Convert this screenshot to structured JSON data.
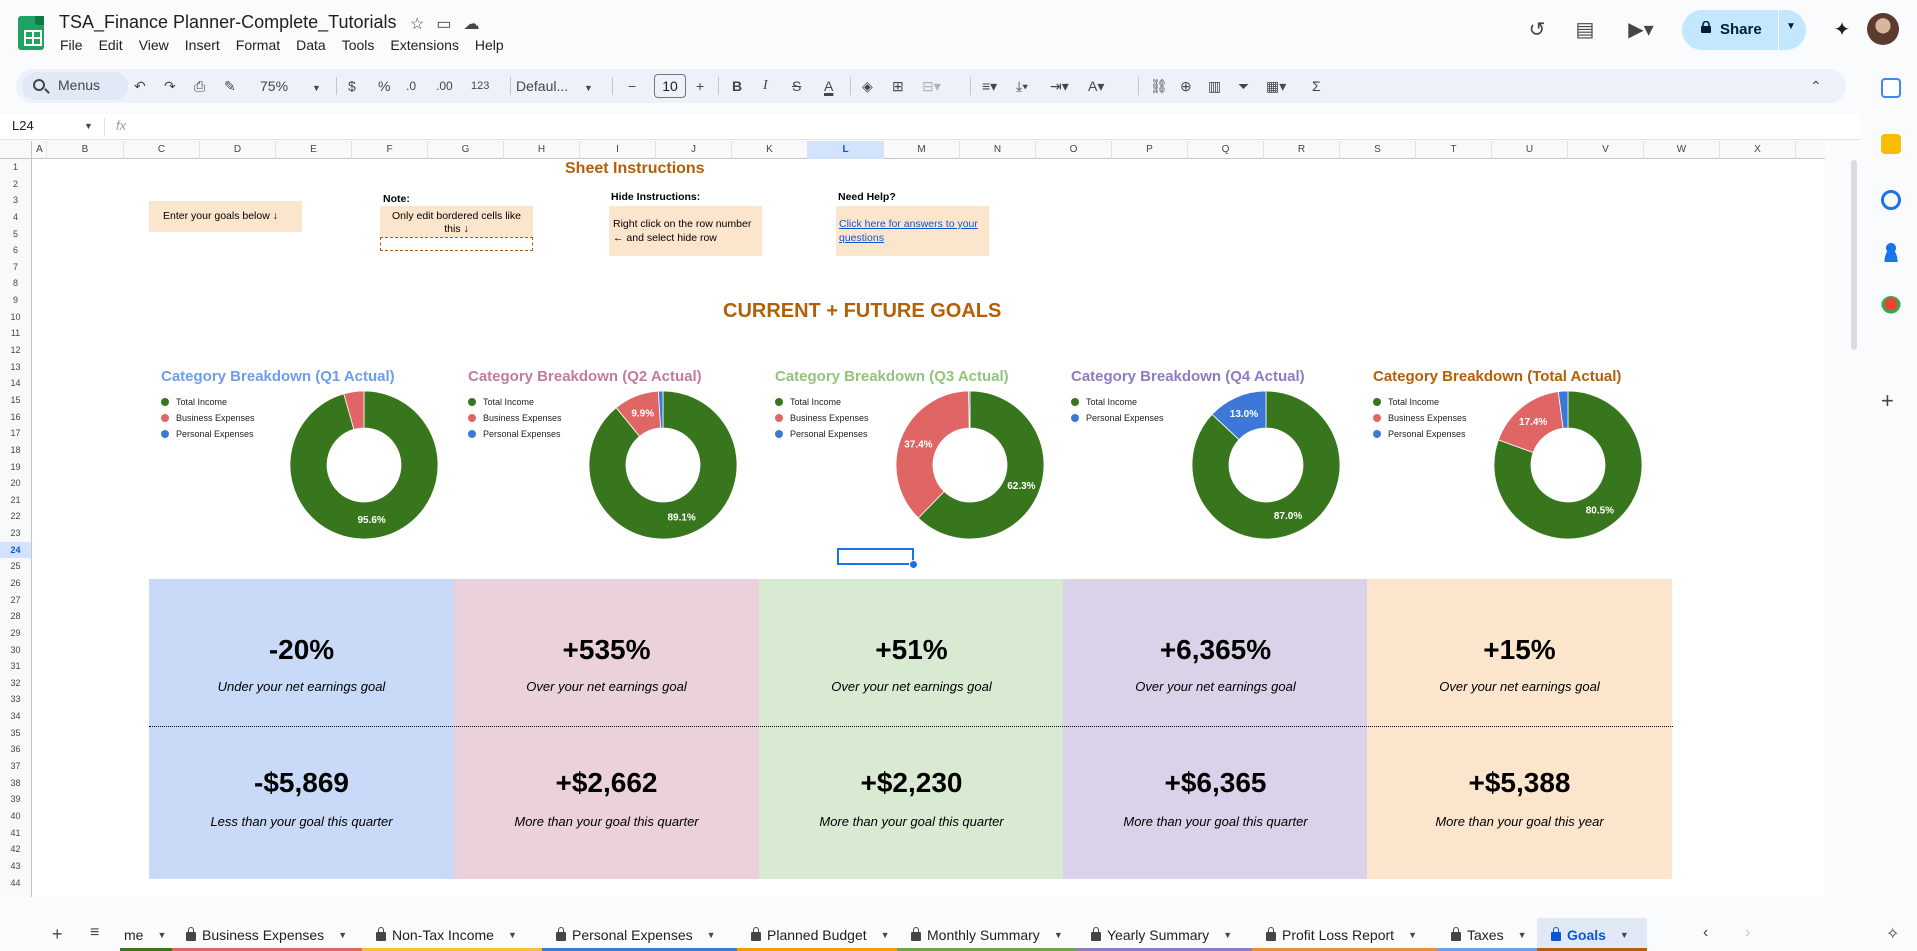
{
  "doc": {
    "title": "TSA_Finance Planner-Complete_Tutorials",
    "menus": [
      "File",
      "Edit",
      "View",
      "Insert",
      "Format",
      "Data",
      "Tools",
      "Extensions",
      "Help"
    ],
    "share_label": "Share"
  },
  "toolbar": {
    "search_label": "Menus",
    "zoom": "75%",
    "currency": "$",
    "percent": "%",
    "dec_decrease": ".0",
    "dec_increase": ".00",
    "number_format": "123",
    "font": "Defaul...",
    "font_size": "10"
  },
  "formula": {
    "cell_ref": "L24",
    "fx": "fx"
  },
  "grid": {
    "columns": [
      "A",
      "B",
      "C",
      "D",
      "E",
      "F",
      "G",
      "H",
      "I",
      "J",
      "K",
      "L",
      "M",
      "N",
      "O",
      "P",
      "Q",
      "R",
      "S",
      "T",
      "U",
      "V",
      "W",
      "X"
    ],
    "selected_column": "L",
    "rows": [
      "1",
      "2",
      "3",
      "4",
      "5",
      "6",
      "7",
      "8",
      "9",
      "10",
      "11",
      "12",
      "13",
      "14",
      "15",
      "16",
      "17",
      "18",
      "19",
      "20",
      "21",
      "22",
      "23",
      "24",
      "25",
      "26",
      "27",
      "28",
      "29",
      "30",
      "31",
      "32",
      "33",
      "34",
      "35",
      "36",
      "37",
      "38",
      "39",
      "40",
      "41",
      "42",
      "43",
      "44"
    ],
    "selected_row": "24"
  },
  "sheet": {
    "instructions_title": "Sheet Instructions",
    "goals_box": "Enter your goals below ↓",
    "note_label": "Note:",
    "note_text": "Only edit bordered cells like this ↓",
    "hide_label": "Hide Instructions:",
    "hide_text": "Right click on the row number ← and select hide row",
    "help_label": "Need Help?",
    "help_link": "Click here for answers to your questions",
    "goals_title": "CURRENT + FUTURE GOALS"
  },
  "chart_data": [
    {
      "type": "pie",
      "title": "Category Breakdown (Q1 Actual)",
      "title_color": "#6d9eeb",
      "categories": [
        "Total Income",
        "Business Expenses",
        "Personal Expenses"
      ],
      "values": [
        95.6,
        4.4,
        0.0
      ],
      "data_labels": [
        "95.6%",
        "",
        ""
      ],
      "colors": [
        "#38761d",
        "#e06666",
        "#3c78d8"
      ]
    },
    {
      "type": "pie",
      "title": "Category Breakdown (Q2 Actual)",
      "title_color": "#c27ba0",
      "categories": [
        "Total Income",
        "Business Expenses",
        "Personal Expenses"
      ],
      "values": [
        89.1,
        9.9,
        1.0
      ],
      "data_labels": [
        "89.1%",
        "9.9%",
        ""
      ],
      "colors": [
        "#38761d",
        "#e06666",
        "#3c78d8"
      ]
    },
    {
      "type": "pie",
      "title": "Category Breakdown (Q3 Actual)",
      "title_color": "#93c47d",
      "categories": [
        "Total Income",
        "Business Expenses",
        "Personal Expenses"
      ],
      "values": [
        62.3,
        37.4,
        0.3
      ],
      "data_labels": [
        "62.3%",
        "37.4%",
        ""
      ],
      "colors": [
        "#38761d",
        "#e06666",
        "#3c78d8"
      ]
    },
    {
      "type": "pie",
      "title": "Category Breakdown (Q4 Actual)",
      "title_color": "#8e7cc3",
      "categories": [
        "Total Income",
        "Personal Expenses"
      ],
      "values": [
        87.0,
        13.0
      ],
      "data_labels": [
        "87.0%",
        "13.0%"
      ],
      "colors": [
        "#38761d",
        "#3c78d8"
      ]
    },
    {
      "type": "pie",
      "title": "Category Breakdown (Total Actual)",
      "title_color": "#b45f06",
      "categories": [
        "Total Income",
        "Business Expenses",
        "Personal Expenses"
      ],
      "values": [
        80.5,
        17.4,
        2.1
      ],
      "data_labels": [
        "80.5%",
        "17.4%",
        ""
      ],
      "colors": [
        "#38761d",
        "#e06666",
        "#3c78d8"
      ]
    }
  ],
  "stats": [
    {
      "pct": "-20%",
      "pct_text": "Under your net earnings goal",
      "amount": "-$5,869",
      "amount_text": "Less than your goal this quarter",
      "bg": "#c9daf8"
    },
    {
      "pct": "+535%",
      "pct_text": "Over your net earnings goal",
      "amount": "+$2,662",
      "amount_text": "More than your goal this quarter",
      "bg": "#ead1dc"
    },
    {
      "pct": "+51%",
      "pct_text": "Over your net earnings goal",
      "amount": "+$2,230",
      "amount_text": "More than your goal this quarter",
      "bg": "#d9ead3"
    },
    {
      "pct": "+6,365%",
      "pct_text": "Over your net earnings goal",
      "amount": "+$6,365",
      "amount_text": "More than your goal this quarter",
      "bg": "#d9d2e9"
    },
    {
      "pct": "+15%",
      "pct_text": "Over your net earnings goal",
      "amount": "+$5,388",
      "amount_text": "More than your goal this year",
      "bg": "#fce5cd"
    }
  ],
  "tabs": [
    {
      "label": "me",
      "color": "#38761d",
      "locked": false
    },
    {
      "label": "Business Expenses",
      "color": "#e06666",
      "locked": true
    },
    {
      "label": "Non-Tax Income",
      "color": "#f1c232",
      "locked": true
    },
    {
      "label": "Personal Expenses",
      "color": "#3c78d8",
      "locked": true
    },
    {
      "label": "Planned Budget",
      "color": "#ff9900",
      "locked": true
    },
    {
      "label": "Monthly Summary",
      "color": "#6aa84f",
      "locked": true
    },
    {
      "label": "Yearly Summary",
      "color": "#8e7cc3",
      "locked": true
    },
    {
      "label": "Profit Loss Report",
      "color": "#e69138",
      "locked": true
    },
    {
      "label": "Taxes",
      "color": "#6d9eeb",
      "locked": true
    },
    {
      "label": "Goals",
      "color": "#b45f06",
      "locked": true,
      "active": true
    }
  ]
}
